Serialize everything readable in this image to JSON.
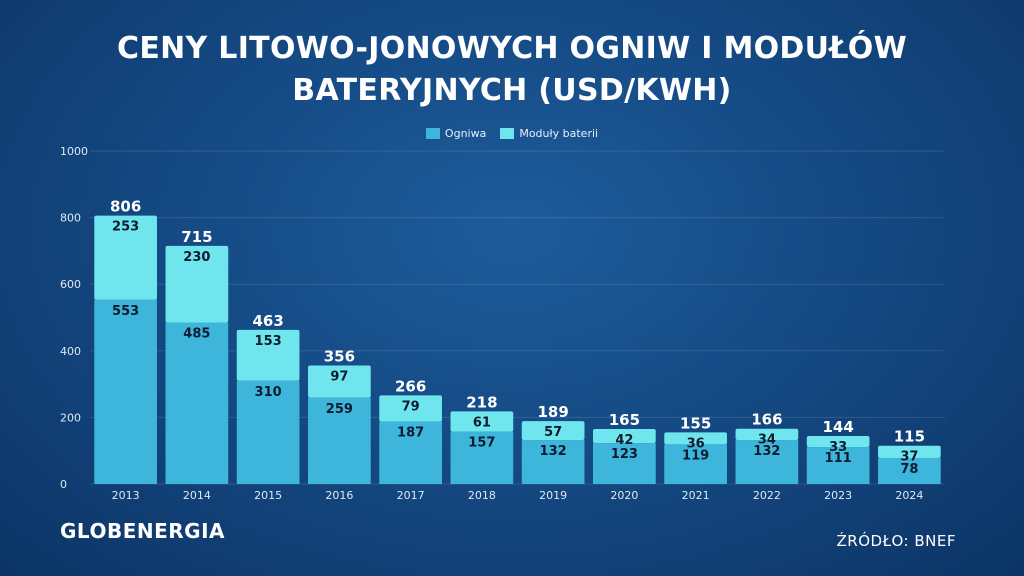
{
  "title_line1": "CENY LITOWO-JONOWYCH OGNIW I MODUŁÓW",
  "title_line2": "BATERYJNYCH (USD/KWH)",
  "brand": "GLOBENERGIA",
  "source": "ŹRÓDŁO: BNEF",
  "colors": {
    "cells": "#3eb6dc",
    "modules": "#6fe6ee",
    "background": "#154a84"
  },
  "chart_data": {
    "type": "bar",
    "stacked": true,
    "categories": [
      "2013",
      "2014",
      "2015",
      "2016",
      "2017",
      "2018",
      "2019",
      "2020",
      "2021",
      "2022",
      "2023",
      "2024"
    ],
    "series": [
      {
        "name": "Ogniwa",
        "values": [
          553,
          485,
          310,
          259,
          187,
          157,
          132,
          123,
          119,
          132,
          111,
          78
        ]
      },
      {
        "name": "Moduły baterii",
        "values": [
          253,
          230,
          153,
          97,
          79,
          61,
          57,
          42,
          36,
          34,
          33,
          37
        ]
      }
    ],
    "totals": [
      806,
      715,
      463,
      356,
      266,
      218,
      189,
      165,
      155,
      166,
      144,
      115
    ],
    "ylim": [
      0,
      1000
    ],
    "yticks": [
      0,
      200,
      400,
      600,
      800,
      1000
    ],
    "grid": true,
    "legend_position": "top-center"
  }
}
